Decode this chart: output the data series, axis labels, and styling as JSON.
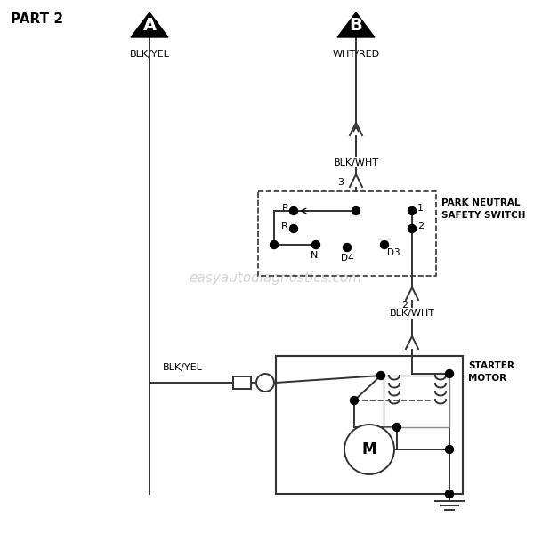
{
  "title": "PART 2",
  "bg_color": "#ffffff",
  "line_color": "#333333",
  "connector_A_label": "A",
  "connector_B_label": "B",
  "wire_A_label": "BLK/YEL",
  "wire_B_label": "WHT/RED",
  "blk_wht_label1": "BLK/WHT",
  "blk_wht_label2": "BLK/WHT",
  "blk_yel_label": "BLK/YEL",
  "park_neutral_label1": "PARK NEUTRAL",
  "park_neutral_label2": "SAFETY SWITCH",
  "starter_motor_label1": "STARTER",
  "starter_motor_label2": "MOTOR",
  "watermark": "easyautodiagnostics.com"
}
